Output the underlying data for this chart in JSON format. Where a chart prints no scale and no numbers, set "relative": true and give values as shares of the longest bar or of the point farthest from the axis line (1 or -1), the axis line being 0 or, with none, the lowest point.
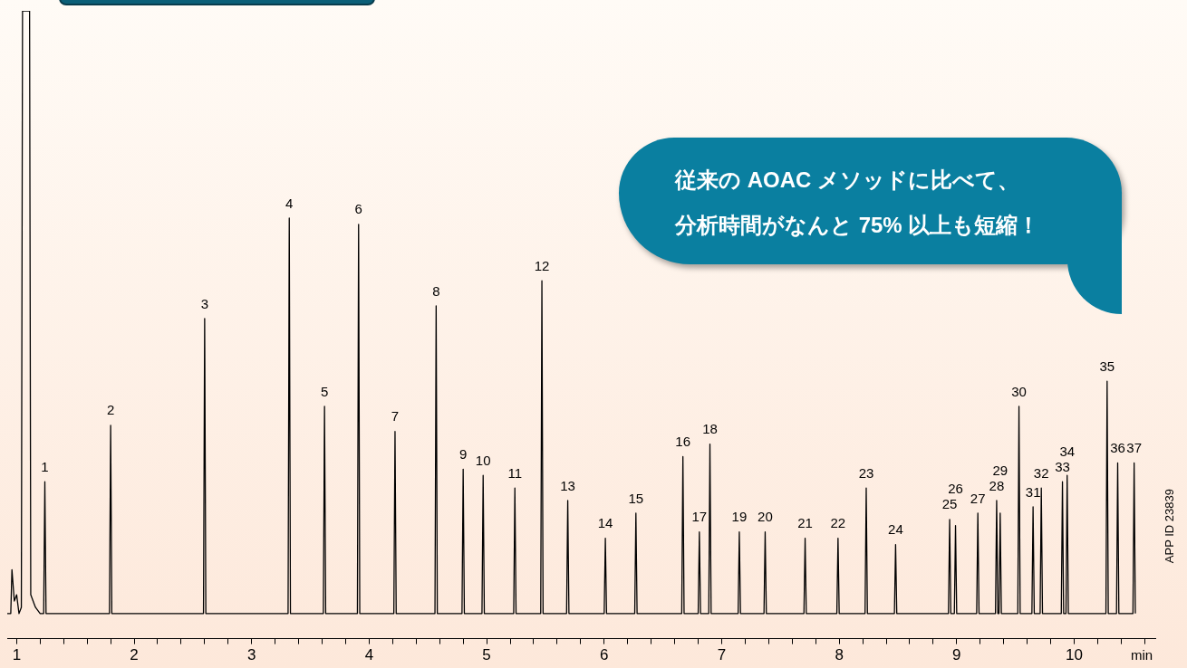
{
  "chart_data": {
    "type": "line",
    "relative": true,
    "xlabel": "min",
    "xlim": [
      0.92,
      10.69
    ],
    "xticks": [
      1,
      {
        "value": 1.2,
        "label": null
      },
      {
        "value": 1.4,
        "label": null
      },
      {
        "value": 1.6,
        "label": null
      },
      {
        "value": 1.8,
        "label": null
      },
      2,
      {
        "value": 2.2,
        "label": null
      },
      {
        "value": 2.4,
        "label": null
      },
      {
        "value": 2.6,
        "label": null
      },
      {
        "value": 2.8,
        "label": null
      },
      3,
      {
        "value": 3.2,
        "label": null
      },
      {
        "value": 3.4,
        "label": null
      },
      {
        "value": 3.6,
        "label": null
      },
      {
        "value": 3.8,
        "label": null
      },
      4,
      {
        "value": 4.2,
        "label": null
      },
      {
        "value": 4.4,
        "label": null
      },
      {
        "value": 4.6,
        "label": null
      },
      {
        "value": 4.8,
        "label": null
      },
      5,
      {
        "value": 5.2,
        "label": null
      },
      {
        "value": 5.4,
        "label": null
      },
      {
        "value": 5.6,
        "label": null
      },
      {
        "value": 5.8,
        "label": null
      },
      6,
      {
        "value": 6.2,
        "label": null
      },
      {
        "value": 6.4,
        "label": null
      },
      {
        "value": 6.6,
        "label": null
      },
      {
        "value": 6.8,
        "label": null
      },
      7,
      {
        "value": 7.2,
        "label": null
      },
      {
        "value": 7.4,
        "label": null
      },
      {
        "value": 7.6,
        "label": null
      },
      {
        "value": 7.8,
        "label": null
      },
      8,
      {
        "value": 8.2,
        "label": null
      },
      {
        "value": 8.4,
        "label": null
      },
      {
        "value": 8.6,
        "label": null
      },
      {
        "value": 8.8,
        "label": null
      },
      9,
      {
        "value": 9.2,
        "label": null
      },
      {
        "value": 9.4,
        "label": null
      },
      {
        "value": 9.6,
        "label": null
      },
      {
        "value": 9.8,
        "label": null
      },
      10,
      {
        "value": 10.2,
        "label": null
      },
      {
        "value": 10.4,
        "label": null
      },
      {
        "value": 10.6,
        "label": null
      }
    ],
    "grid": false,
    "legend": false,
    "marker": "none",
    "line_style": "solid",
    "series": [
      {
        "color": "#000000",
        "x": [
          0.92,
          0.95,
          0.96,
          0.98,
          1.0,
          1.02,
          1.04,
          1.05,
          1.11,
          1.12,
          1.16,
          1.2,
          1.23,
          1.24,
          1.25,
          1.79,
          1.8,
          1.81,
          2.59,
          2.6,
          2.61,
          3.31,
          3.32,
          3.33,
          3.61,
          3.62,
          3.63,
          3.9,
          3.91,
          3.92,
          4.21,
          4.22,
          4.23,
          4.56,
          4.57,
          4.58,
          4.79,
          4.8,
          4.81,
          4.96,
          4.97,
          4.98,
          5.23,
          5.24,
          5.25,
          5.46,
          5.47,
          5.48,
          5.68,
          5.69,
          5.7,
          6.0,
          6.01,
          6.02,
          6.26,
          6.27,
          6.28,
          6.66,
          6.67,
          6.68,
          6.8,
          6.81,
          6.82,
          6.89,
          6.9,
          6.91,
          7.14,
          7.15,
          7.16,
          7.36,
          7.37,
          7.38,
          7.7,
          7.71,
          7.72,
          7.98,
          7.99,
          8.0,
          8.22,
          8.23,
          8.24,
          8.47,
          8.48,
          8.49,
          8.93,
          8.94,
          8.95,
          8.98,
          8.99,
          9.0,
          9.17,
          9.18,
          9.19,
          9.33,
          9.34,
          9.35,
          9.36,
          9.37,
          9.38,
          9.52,
          9.53,
          9.54,
          9.64,
          9.65,
          9.66,
          9.71,
          9.72,
          9.73,
          9.89,
          9.9,
          9.91,
          9.93,
          9.94,
          9.95,
          10.27,
          10.28,
          10.29,
          10.36,
          10.37,
          10.38,
          10.5,
          10.51,
          10.52
        ],
        "values": [
          0.04,
          0.04,
          0.11,
          0.06,
          0.07,
          0.04,
          0.05,
          1,
          1,
          0.07,
          0.05,
          0.04,
          0.04,
          0.25,
          0.04,
          0.04,
          0.34,
          0.04,
          0.04,
          0.51,
          0.04,
          0.04,
          0.67,
          0.04,
          0.04,
          0.37,
          0.04,
          0.04,
          0.66,
          0.04,
          0.04,
          0.33,
          0.04,
          0.04,
          0.53,
          0.04,
          0.04,
          0.27,
          0.04,
          0.04,
          0.26,
          0.04,
          0.04,
          0.24,
          0.04,
          0.04,
          0.57,
          0.04,
          0.04,
          0.22,
          0.04,
          0.04,
          0.16,
          0.04,
          0.04,
          0.2,
          0.04,
          0.04,
          0.29,
          0.04,
          0.04,
          0.17,
          0.04,
          0.04,
          0.31,
          0.04,
          0.04,
          0.17,
          0.04,
          0.04,
          0.17,
          0.04,
          0.04,
          0.16,
          0.04,
          0.04,
          0.16,
          0.04,
          0.04,
          0.24,
          0.04,
          0.04,
          0.15,
          0.04,
          0.04,
          0.19,
          0.04,
          0.04,
          0.18,
          0.04,
          0.04,
          0.2,
          0.04,
          0.04,
          0.22,
          0.04,
          0.04,
          0.2,
          0.04,
          0.04,
          0.37,
          0.04,
          0.04,
          0.21,
          0.04,
          0.04,
          0.24,
          0.04,
          0.04,
          0.25,
          0.04,
          0.04,
          0.26,
          0.04,
          0.04,
          0.41,
          0.04,
          0.04,
          0.28,
          0.04,
          0.04,
          0.28,
          0.04
        ]
      }
    ],
    "annotations": [
      {
        "text": "1",
        "x": 1.24,
        "y": 0.25
      },
      {
        "text": "2",
        "x": 1.8,
        "y": 0.34
      },
      {
        "text": "3",
        "x": 2.6,
        "y": 0.51
      },
      {
        "text": "4",
        "x": 3.32,
        "y": 0.67
      },
      {
        "text": "5",
        "x": 3.62,
        "y": 0.37
      },
      {
        "text": "6",
        "x": 3.91,
        "y": 0.66
      },
      {
        "text": "7",
        "x": 4.22,
        "y": 0.33
      },
      {
        "text": "8",
        "x": 4.57,
        "y": 0.53
      },
      {
        "text": "9",
        "x": 4.8,
        "y": 0.27
      },
      {
        "text": "10",
        "x": 4.97,
        "y": 0.26
      },
      {
        "text": "11",
        "x": 5.24,
        "y": 0.24
      },
      {
        "text": "12",
        "x": 5.47,
        "y": 0.57
      },
      {
        "text": "13",
        "x": 5.69,
        "y": 0.22
      },
      {
        "text": "14",
        "x": 6.01,
        "y": 0.16
      },
      {
        "text": "15",
        "x": 6.27,
        "y": 0.2
      },
      {
        "text": "16",
        "x": 6.67,
        "y": 0.29
      },
      {
        "text": "17",
        "x": 6.81,
        "y": 0.17
      },
      {
        "text": "18",
        "x": 6.9,
        "y": 0.31
      },
      {
        "text": "19",
        "x": 7.15,
        "y": 0.17
      },
      {
        "text": "20",
        "x": 7.37,
        "y": 0.17
      },
      {
        "text": "21",
        "x": 7.71,
        "y": 0.16
      },
      {
        "text": "22",
        "x": 7.99,
        "y": 0.16
      },
      {
        "text": "23",
        "x": 8.23,
        "y": 0.24
      },
      {
        "text": "24",
        "x": 8.48,
        "y": 0.15
      },
      {
        "text": "25",
        "x": 8.94,
        "y": 0.19
      },
      {
        "text": "26",
        "x": 8.99,
        "y": 0.18
      },
      {
        "text": "27",
        "x": 9.18,
        "y": 0.2
      },
      {
        "text": "28",
        "x": 9.34,
        "y": 0.22
      },
      {
        "text": "29",
        "x": 9.37,
        "y": 0.2
      },
      {
        "text": "30",
        "x": 9.53,
        "y": 0.37
      },
      {
        "text": "31",
        "x": 9.65,
        "y": 0.21
      },
      {
        "text": "32",
        "x": 9.72,
        "y": 0.24
      },
      {
        "text": "33",
        "x": 9.9,
        "y": 0.25
      },
      {
        "text": "34",
        "x": 9.94,
        "y": 0.26
      },
      {
        "text": "35",
        "x": 10.28,
        "y": 0.41
      },
      {
        "text": "36",
        "x": 10.37,
        "y": 0.28
      },
      {
        "text": "37",
        "x": 10.51,
        "y": 0.28
      },
      "従来の AOAC メソッドに比べて、",
      "分析時間がなんと 75% 以上も短縮！",
      "APP ID 23839"
    ]
  }
}
